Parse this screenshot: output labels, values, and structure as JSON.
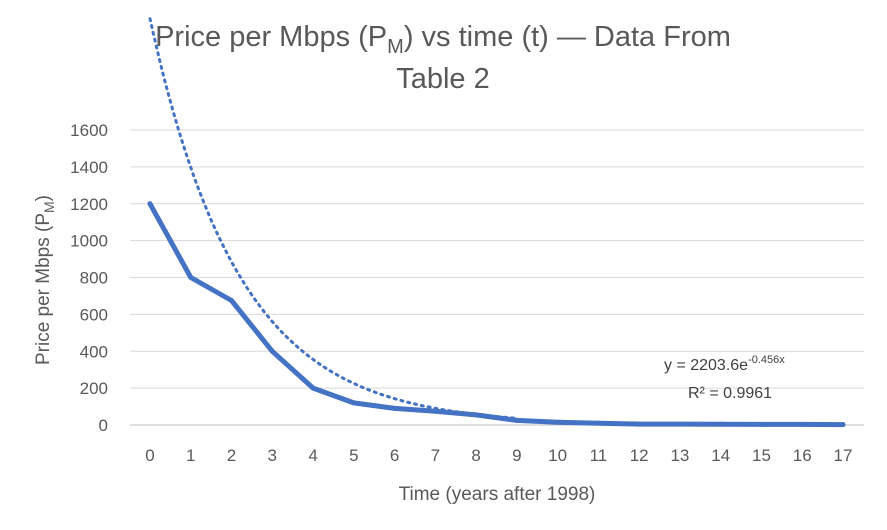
{
  "chart_data": {
    "type": "line",
    "title_line1_main": "Price per Mbps (P",
    "title_line1_sub": "M",
    "title_line1_rest": ") vs time (t) — Data From",
    "title_line2": "Table 2",
    "xlabel": "Time (years after 1998)",
    "ylabel_main": "Price per Mbps (P",
    "ylabel_sub": "M",
    "ylabel_end": ")",
    "x": [
      0,
      1,
      2,
      3,
      4,
      5,
      6,
      7,
      8,
      9,
      10,
      11,
      12,
      13,
      14,
      15,
      16,
      17
    ],
    "x_tick_labels": [
      "0",
      "1",
      "2",
      "3",
      "4",
      "5",
      "6",
      "7",
      "8",
      "9",
      "10",
      "11",
      "12",
      "13",
      "14",
      "15",
      "16",
      "17"
    ],
    "ylim": [
      0,
      1600
    ],
    "y_tick_labels": [
      "0",
      "200",
      "400",
      "600",
      "800",
      "1000",
      "1200",
      "1400",
      "1600"
    ],
    "grid": true,
    "series": [
      {
        "values": [
          1200,
          800,
          675,
          400,
          200,
          120,
          90,
          75,
          55,
          25,
          15,
          10,
          5,
          5,
          4,
          3,
          3,
          2
        ],
        "color": "#4472C4",
        "style": "solid"
      }
    ],
    "trendline": {
      "type": "exponential",
      "a": 2203.6,
      "b": -0.456,
      "x_range": [
        0,
        9
      ],
      "color": "#4472C4",
      "style": "dotted",
      "equation_main": "y = 2203.6e",
      "equation_exp": "-0.456x",
      "r_squared_text": "R² = 0.9961"
    }
  }
}
